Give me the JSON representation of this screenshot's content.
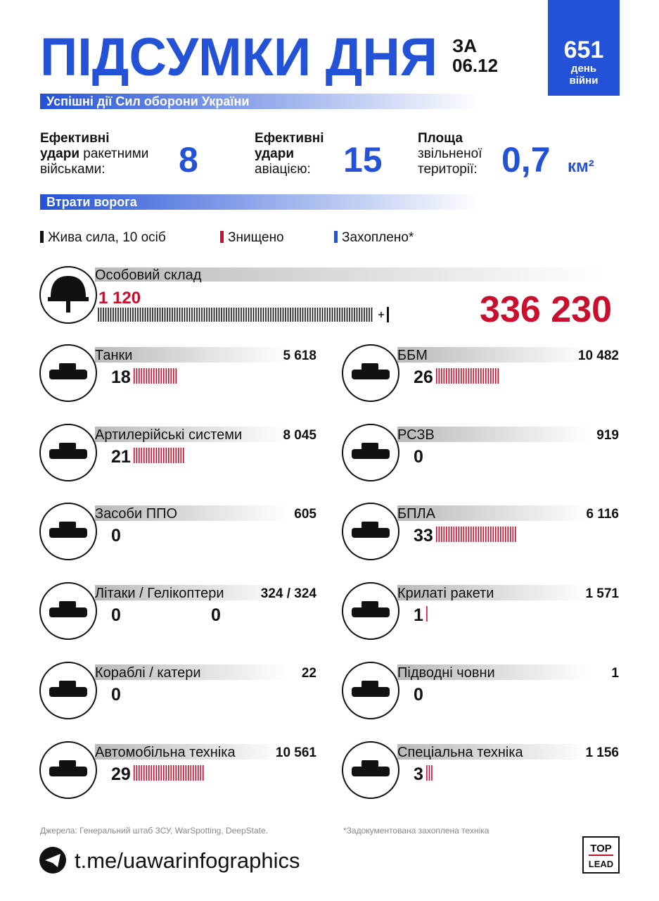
{
  "header": {
    "title": "ПІДСУМКИ ДНЯ",
    "date_prefix": "ЗА",
    "date": "06.12",
    "day_number": "651",
    "day_label": "день",
    "day_label2": "війни"
  },
  "success": {
    "heading": "Успішні дії Сил оборони України",
    "missiles": {
      "l1": "Ефективні",
      "l2b": "удари",
      "l2": "ракетними",
      "l3": "військами:",
      "value": "8"
    },
    "aviation": {
      "l1": "Ефективні",
      "l2b": "удари",
      "l3": "авіацією:",
      "value": "15"
    },
    "territory": {
      "l1": "Площа",
      "l2": "звільненої",
      "l3": "території:",
      "value": "0,7",
      "unit": "км²"
    }
  },
  "losses": {
    "heading": "Втрати ворога",
    "legend": [
      "Жива сила, 10 осіб",
      "Знищено",
      "Захоплено*"
    ],
    "personnel": {
      "label": "Особовий склад",
      "daily": {
        "value": 1120,
        "label": "1 120"
      },
      "total": "336 230"
    },
    "items": [
      {
        "label": "Танки",
        "total": "5 618",
        "daily": [
          18
        ]
      },
      {
        "label": "ББМ",
        "total": "10 482",
        "daily": [
          26
        ]
      },
      {
        "label": "Артилерійські системи",
        "total": "8 045",
        "daily": [
          21
        ]
      },
      {
        "label": "РСЗВ",
        "total": "919",
        "daily": [
          0
        ]
      },
      {
        "label": "Засоби ППО",
        "total": "605",
        "daily": [
          0
        ]
      },
      {
        "label": "БПЛА",
        "total": "6 116",
        "daily": [
          33
        ]
      },
      {
        "label": "Літаки / Гелікоптери",
        "total": "324 / 324",
        "daily": [
          0,
          0
        ]
      },
      {
        "label": "Крилаті ракети",
        "total": "1 571",
        "daily": [
          1
        ]
      },
      {
        "label": "Кораблі / катери",
        "total": "22",
        "daily": [
          0
        ]
      },
      {
        "label": "Підводні човни",
        "total": "1",
        "daily": [
          0
        ]
      },
      {
        "label": "Автомобільна техніка",
        "total": "10 561",
        "daily": [
          29
        ]
      },
      {
        "label": "Спеціальна техніка",
        "total": "1 156",
        "daily": [
          3
        ]
      }
    ]
  },
  "footer": {
    "sources": "Джерела: Генеральний штаб ЗСУ, WarSpotting, DeepState.",
    "note": "*Задокументована захоплена техніка",
    "channel": "t.me/uawarinfographics",
    "logo_top": "TOP",
    "logo_bottom": "LEAD"
  }
}
